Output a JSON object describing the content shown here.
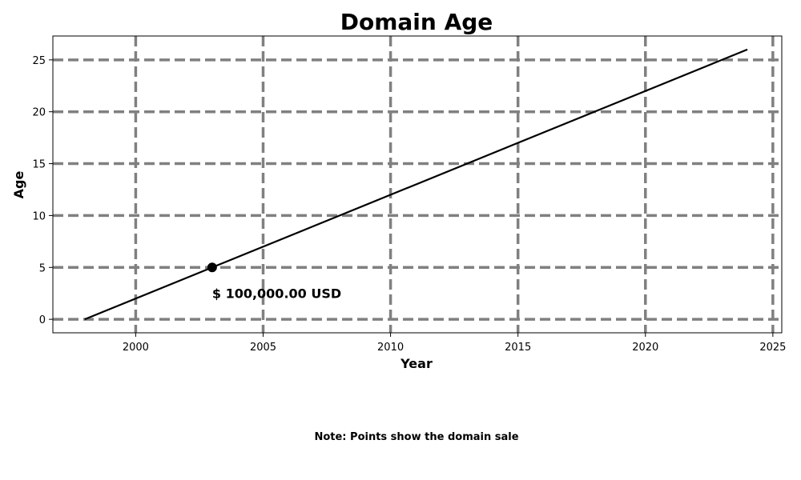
{
  "chart_data": {
    "type": "line",
    "title": "Domain Age",
    "xlabel": "Year",
    "ylabel": "Age",
    "xlim": [
      1996.75,
      2025.35
    ],
    "ylim": [
      -1.3,
      27.3
    ],
    "xticks": [
      2000,
      2005,
      2010,
      2015,
      2020,
      2025
    ],
    "yticks": [
      0,
      5,
      10,
      15,
      20,
      25
    ],
    "grid": true,
    "series": [
      {
        "x": [
          1998,
          2024
        ],
        "y": [
          0,
          26
        ],
        "color": "#000000"
      }
    ],
    "points": [
      {
        "x": 2003,
        "y": 5,
        "label": "$ 100,000.00 USD"
      }
    ],
    "note": "Note: Points show the domain sale",
    "colors": {
      "line": "#000000",
      "grid": "#808080",
      "point": "#000000"
    }
  }
}
